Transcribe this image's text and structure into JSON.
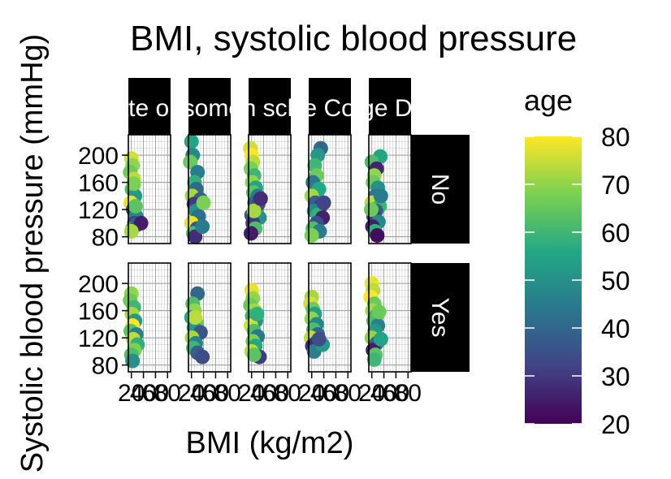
{
  "chart_data": {
    "type": "scatter",
    "title": "BMI, systolic blood pressure",
    "xlabel": "BMI (kg/m2)",
    "ylabel": "Systolic blood pressure (mmHg)",
    "x_ticks": [
      20,
      40,
      60,
      80
    ],
    "x_tick_labels": [
      "20",
      "40",
      "60",
      "80"
    ],
    "xlim": [
      15,
      85
    ],
    "y_ticks": [
      80,
      120,
      160,
      200
    ],
    "y_tick_labels": [
      "80",
      "120",
      "160",
      "200"
    ],
    "ylim": [
      70,
      230
    ],
    "grid": true,
    "facet_columns": [
      "Graduate or higher",
      "College/some college",
      "High school",
      "Some College",
      "College Degree"
    ],
    "facet_rows": [
      "No",
      "Yes"
    ],
    "color_scale": {
      "title": "age",
      "palette": "viridis",
      "min": 20,
      "max": 80,
      "ticks": [
        20,
        30,
        40,
        50,
        60,
        70,
        80
      ],
      "tick_labels": [
        "20",
        "30",
        "40",
        "50",
        "60",
        "70",
        "80"
      ],
      "colors": [
        "#440154",
        "#414487",
        "#2a788e",
        "#22a884",
        "#7ad151",
        "#fde725"
      ]
    },
    "panels": [
      {
        "row": 0,
        "col": 0,
        "points": [
          [
            20,
            195,
            76
          ],
          [
            22,
            185,
            70
          ],
          [
            18,
            175,
            66
          ],
          [
            24,
            165,
            74
          ],
          [
            21,
            150,
            62
          ],
          [
            26,
            140,
            52
          ],
          [
            19,
            130,
            78
          ],
          [
            23,
            120,
            36
          ],
          [
            28,
            110,
            48
          ],
          [
            25,
            100,
            32
          ],
          [
            22,
            92,
            60
          ],
          [
            30,
            98,
            40
          ],
          [
            36,
            100,
            25
          ],
          [
            20,
            88,
            72
          ],
          [
            27,
            125,
            64
          ],
          [
            24,
            158,
            68
          ]
        ]
      },
      {
        "row": 0,
        "col": 1,
        "points": [
          [
            20,
            220,
            55
          ],
          [
            22,
            200,
            48
          ],
          [
            18,
            190,
            66
          ],
          [
            30,
            175,
            45
          ],
          [
            25,
            160,
            58
          ],
          [
            28,
            150,
            40
          ],
          [
            21,
            140,
            72
          ],
          [
            35,
            135,
            38
          ],
          [
            24,
            128,
            30
          ],
          [
            27,
            118,
            50
          ],
          [
            32,
            110,
            42
          ],
          [
            20,
            100,
            78
          ],
          [
            29,
            92,
            35
          ],
          [
            23,
            85,
            62
          ],
          [
            26,
            80,
            28
          ],
          [
            38,
            95,
            45
          ],
          [
            40,
            130,
            68
          ]
        ]
      },
      {
        "row": 0,
        "col": 2,
        "points": [
          [
            18,
            210,
            76
          ],
          [
            20,
            200,
            80
          ],
          [
            22,
            190,
            74
          ],
          [
            19,
            180,
            68
          ],
          [
            24,
            170,
            60
          ],
          [
            21,
            160,
            70
          ],
          [
            27,
            152,
            55
          ],
          [
            23,
            145,
            64
          ],
          [
            30,
            140,
            45
          ],
          [
            25,
            130,
            40
          ],
          [
            28,
            122,
            58
          ],
          [
            20,
            112,
            36
          ],
          [
            33,
            108,
            50
          ],
          [
            22,
            100,
            30
          ],
          [
            26,
            92,
            62
          ],
          [
            19,
            85,
            25
          ],
          [
            31,
            128,
            34
          ],
          [
            24,
            118,
            72
          ],
          [
            35,
            136,
            28
          ]
        ]
      },
      {
        "row": 0,
        "col": 3,
        "points": [
          [
            35,
            210,
            40
          ],
          [
            30,
            200,
            52
          ],
          [
            25,
            185,
            60
          ],
          [
            28,
            170,
            66
          ],
          [
            22,
            160,
            44
          ],
          [
            32,
            150,
            56
          ],
          [
            20,
            140,
            72
          ],
          [
            26,
            130,
            38
          ],
          [
            35,
            125,
            30
          ],
          [
            24,
            118,
            48
          ],
          [
            30,
            112,
            58
          ],
          [
            38,
            108,
            26
          ],
          [
            28,
            100,
            34
          ],
          [
            22,
            92,
            62
          ],
          [
            33,
            88,
            45
          ],
          [
            20,
            82,
            68
          ],
          [
            40,
            130,
            32
          ]
        ]
      },
      {
        "row": 0,
        "col": 4,
        "points": [
          [
            34,
            198,
            55
          ],
          [
            20,
            190,
            62
          ],
          [
            28,
            180,
            26
          ],
          [
            24,
            170,
            70
          ],
          [
            22,
            160,
            66
          ],
          [
            30,
            152,
            50
          ],
          [
            26,
            140,
            44
          ],
          [
            20,
            130,
            74
          ],
          [
            33,
            125,
            60
          ],
          [
            27,
            118,
            38
          ],
          [
            23,
            110,
            30
          ],
          [
            31,
            102,
            48
          ],
          [
            21,
            95,
            25
          ],
          [
            25,
            88,
            58
          ],
          [
            29,
            82,
            22
          ],
          [
            35,
            140,
            45
          ],
          [
            19,
            120,
            66
          ]
        ]
      },
      {
        "row": 1,
        "col": 0,
        "points": [
          [
            20,
            185,
            70
          ],
          [
            18,
            175,
            66
          ],
          [
            24,
            165,
            60
          ],
          [
            21,
            155,
            72
          ],
          [
            26,
            145,
            52
          ],
          [
            22,
            138,
            80
          ],
          [
            19,
            130,
            64
          ],
          [
            28,
            125,
            46
          ],
          [
            23,
            118,
            74
          ],
          [
            30,
            110,
            58
          ],
          [
            25,
            102,
            68
          ],
          [
            20,
            95,
            62
          ],
          [
            22,
            86,
            50
          ]
        ]
      },
      {
        "row": 1,
        "col": 1,
        "points": [
          [
            30,
            185,
            40
          ],
          [
            22,
            170,
            62
          ],
          [
            25,
            160,
            70
          ],
          [
            20,
            150,
            56
          ],
          [
            28,
            142,
            66
          ],
          [
            24,
            135,
            52
          ],
          [
            35,
            128,
            36
          ],
          [
            21,
            120,
            72
          ],
          [
            27,
            112,
            46
          ],
          [
            23,
            105,
            60
          ],
          [
            30,
            98,
            38
          ],
          [
            38,
            92,
            34
          ],
          [
            26,
            150,
            74
          ]
        ]
      },
      {
        "row": 1,
        "col": 2,
        "points": [
          [
            20,
            190,
            78
          ],
          [
            22,
            178,
            70
          ],
          [
            18,
            168,
            66
          ],
          [
            25,
            160,
            72
          ],
          [
            21,
            152,
            60
          ],
          [
            27,
            145,
            50
          ],
          [
            19,
            138,
            76
          ],
          [
            24,
            130,
            62
          ],
          [
            30,
            122,
            44
          ],
          [
            22,
            115,
            68
          ],
          [
            26,
            108,
            56
          ],
          [
            20,
            100,
            74
          ],
          [
            33,
            92,
            30
          ],
          [
            24,
            95,
            64
          ],
          [
            29,
            155,
            58
          ]
        ]
      },
      {
        "row": 1,
        "col": 3,
        "points": [
          [
            20,
            180,
            72
          ],
          [
            18,
            170,
            76
          ],
          [
            22,
            162,
            66
          ],
          [
            25,
            155,
            54
          ],
          [
            20,
            148,
            70
          ],
          [
            28,
            140,
            48
          ],
          [
            23,
            132,
            62
          ],
          [
            30,
            125,
            40
          ],
          [
            19,
            120,
            74
          ],
          [
            26,
            112,
            36
          ],
          [
            21,
            108,
            28
          ],
          [
            24,
            100,
            46
          ],
          [
            38,
            110,
            52
          ],
          [
            32,
            118,
            34
          ]
        ]
      },
      {
        "row": 1,
        "col": 4,
        "points": [
          [
            20,
            200,
            78
          ],
          [
            22,
            190,
            74
          ],
          [
            18,
            180,
            80
          ],
          [
            24,
            170,
            66
          ],
          [
            21,
            160,
            72
          ],
          [
            27,
            152,
            58
          ],
          [
            23,
            145,
            62
          ],
          [
            30,
            138,
            46
          ],
          [
            25,
            130,
            52
          ],
          [
            20,
            120,
            70
          ],
          [
            28,
            112,
            40
          ],
          [
            22,
            102,
            25
          ],
          [
            26,
            95,
            64
          ],
          [
            35,
            118,
            55
          ],
          [
            32,
            158,
            66
          ],
          [
            24,
            88,
            60
          ]
        ]
      }
    ]
  }
}
